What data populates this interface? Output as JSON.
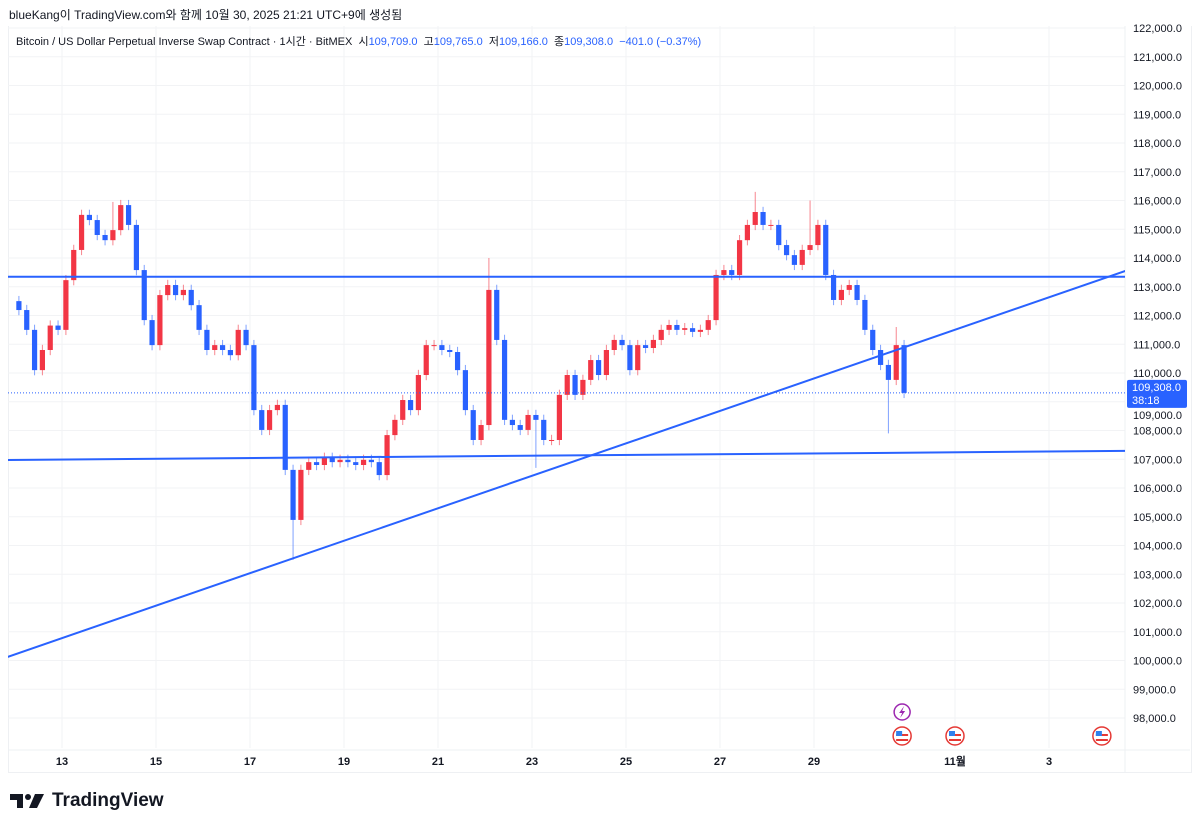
{
  "caption": "blueKang이 TradingView.com와 함께 10월 30, 2025 21:21 UTC+9에 생성됨",
  "legend": {
    "symbol": "Bitcoin / US Dollar Perpetual Inverse Swap Contract · 1시간 · BitMEX",
    "open_label": "시",
    "open": "109,709.0",
    "high_label": "고",
    "high": "109,765.0",
    "low_label": "저",
    "low": "109,166.0",
    "close_label": "종",
    "close": "109,308.0",
    "change": "−401.0 (−0.37%)"
  },
  "logo": "TradingView",
  "chart_data": {
    "type": "candlestick",
    "timeframe_shown": "1시간",
    "resampled_interval": "4h",
    "y_range": [
      97500,
      122300
    ],
    "y_ticks": [
      "122,000.0",
      "121,000.0",
      "120,000.0",
      "119,000.0",
      "118,000.0",
      "117,000.0",
      "116,000.0",
      "115,000.0",
      "114,000.0",
      "113,000.0",
      "112,000.0",
      "111,000.0",
      "110,000.0",
      "109,000.0",
      "108,000.0",
      "107,000.0",
      "106,000.0",
      "105,000.0",
      "104,000.0",
      "103,000.0",
      "102,000.0",
      "101,000.0",
      "100,000.0",
      "99,000.0",
      "98,000.0"
    ],
    "x_ticks": [
      {
        "date": "2025-10-13",
        "label": "13"
      },
      {
        "date": "2025-10-15",
        "label": "15"
      },
      {
        "date": "2025-10-17",
        "label": "17"
      },
      {
        "date": "2025-10-19",
        "label": "19"
      },
      {
        "date": "2025-10-21",
        "label": "21"
      },
      {
        "date": "2025-10-23",
        "label": "23"
      },
      {
        "date": "2025-10-25",
        "label": "25"
      },
      {
        "date": "2025-10-27",
        "label": "27"
      },
      {
        "date": "2025-10-29",
        "label": "29"
      },
      {
        "date": "2025-11-01",
        "label": "11월"
      },
      {
        "date": "2025-11-03",
        "label": "3"
      }
    ],
    "grid": true,
    "up_color": "#f23645",
    "down_color": "#2962ff",
    "days": [
      {
        "date": "2025-10-12",
        "closes": [
          112190,
          111500,
          110100,
          110800,
          111650,
          111500
        ]
      },
      {
        "date": "2025-10-13",
        "closes": [
          113230,
          114280,
          115500,
          115320,
          114800,
          114620
        ]
      },
      {
        "date": "2025-10-14",
        "closes": [
          114970,
          115840,
          115150,
          113580,
          111840,
          110970
        ]
      },
      {
        "date": "2025-10-15",
        "closes": [
          112710,
          113060,
          112710,
          112890,
          112360,
          111500
        ]
      },
      {
        "date": "2025-10-16",
        "closes": [
          110800,
          110970,
          110800,
          110620,
          111500,
          110970
        ]
      },
      {
        "date": "2025-10-17",
        "closes": [
          108710,
          108020,
          108710,
          108890,
          106630,
          104890
        ]
      },
      {
        "date": "2025-10-18",
        "closes": [
          106630,
          106900,
          106800,
          107050,
          106900,
          106980
        ]
      },
      {
        "date": "2025-10-19",
        "closes": [
          106900,
          106800,
          106980,
          106900,
          106450,
          107840
        ]
      },
      {
        "date": "2025-10-20",
        "closes": [
          108370,
          109060,
          108710,
          109930,
          110970,
          110970
        ]
      },
      {
        "date": "2025-10-21",
        "closes": [
          110800,
          110730,
          110100,
          108710,
          107670,
          108190
        ]
      },
      {
        "date": "2025-10-22",
        "closes": [
          112890,
          111150,
          108370,
          108190,
          108020,
          108540
        ]
      },
      {
        "date": "2025-10-23",
        "closes": [
          108370,
          107670,
          107670,
          109240,
          109930,
          109240
        ]
      },
      {
        "date": "2025-10-24",
        "closes": [
          109760,
          110450,
          109930,
          110800,
          111150,
          110970
        ]
      },
      {
        "date": "2025-10-25",
        "closes": [
          110100,
          110970,
          110870,
          111150,
          111500,
          111670
        ]
      },
      {
        "date": "2025-10-26",
        "closes": [
          111500,
          111560,
          111430,
          111500,
          111840,
          113410
        ]
      },
      {
        "date": "2025-10-27",
        "closes": [
          113580,
          113410,
          114620,
          115150,
          115600,
          115150
        ]
      },
      {
        "date": "2025-10-28",
        "closes": [
          115150,
          114450,
          114100,
          113760,
          114280,
          114450
        ]
      },
      {
        "date": "2025-10-29",
        "closes": [
          115150,
          113410,
          112540,
          112890,
          113060,
          112540
        ]
      },
      {
        "date": "2025-10-30",
        "closes": [
          111500,
          110800,
          110280,
          109760,
          110970,
          109308
        ]
      }
    ],
    "first_open": 112500,
    "extremes": [
      {
        "date": "2025-10-14",
        "bar": 0,
        "high": 115950
      },
      {
        "date": "2025-10-17",
        "bar": 5,
        "low": 103500
      },
      {
        "date": "2025-10-22",
        "bar": 0,
        "high": 114000
      },
      {
        "date": "2025-10-23",
        "bar": 0,
        "low": 106700
      },
      {
        "date": "2025-10-27",
        "bar": 4,
        "high": 116300
      },
      {
        "date": "2025-10-28",
        "bar": 5,
        "high": 116000
      },
      {
        "date": "2025-10-30",
        "bar": 3,
        "low": 107900
      },
      {
        "date": "2025-10-30",
        "bar": 4,
        "high": 111600
      }
    ],
    "last_price": {
      "value": 109308,
      "label": "109,308.0",
      "countdown": "38:18",
      "color": "#2962ff"
    },
    "drawings": [
      {
        "name": "resistance",
        "color": "#2962ff",
        "from": {
          "t": "2025-10-11T20:00",
          "p": 113350
        },
        "to": {
          "t": "2025-11-04T15:00",
          "p": 113350
        }
      },
      {
        "name": "support",
        "color": "#2962ff",
        "from": {
          "t": "2025-10-11T20:00",
          "p": 106975
        },
        "to": {
          "t": "2025-11-04T15:00",
          "p": 107290
        }
      },
      {
        "name": "rising-trendline",
        "color": "#2962ff",
        "from": {
          "t": "2025-10-11T20:00",
          "p": 100120
        },
        "to": {
          "t": "2025-11-04T15:00",
          "p": 113550
        }
      }
    ],
    "events": [
      {
        "type": "lightning",
        "t": "2025-10-30T21:00",
        "color": "#9c27b0"
      },
      {
        "type": "us-flag",
        "t": "2025-10-30T21:00"
      },
      {
        "type": "us-flag",
        "t": "2025-11-01T00:00"
      },
      {
        "type": "us-flag",
        "t": "2025-11-04T03:00"
      }
    ]
  }
}
